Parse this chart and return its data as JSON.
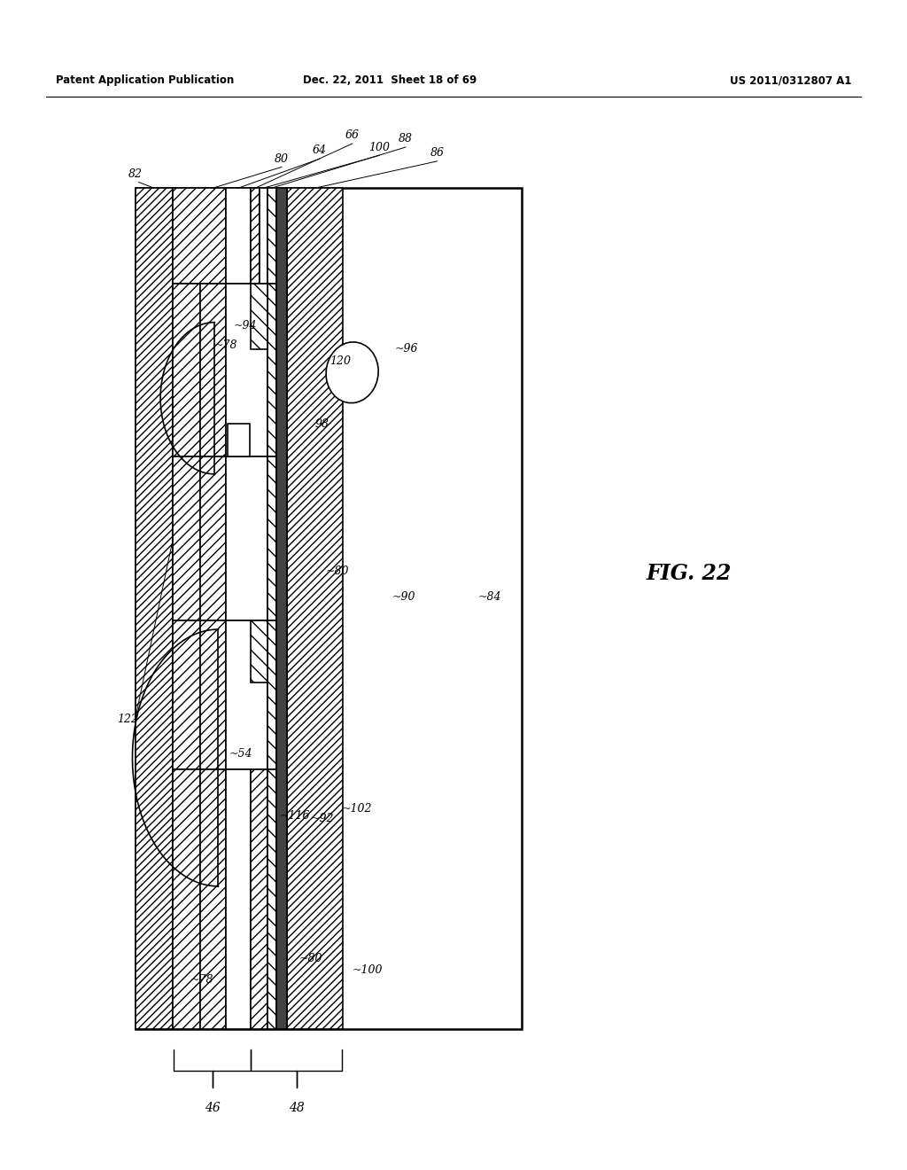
{
  "title": "FIG. 22",
  "header_left": "Patent Application Publication",
  "header_center": "Dec. 22, 2011  Sheet 18 of 69",
  "header_right": "US 2011/0312807 A1",
  "bg_color": "#ffffff"
}
